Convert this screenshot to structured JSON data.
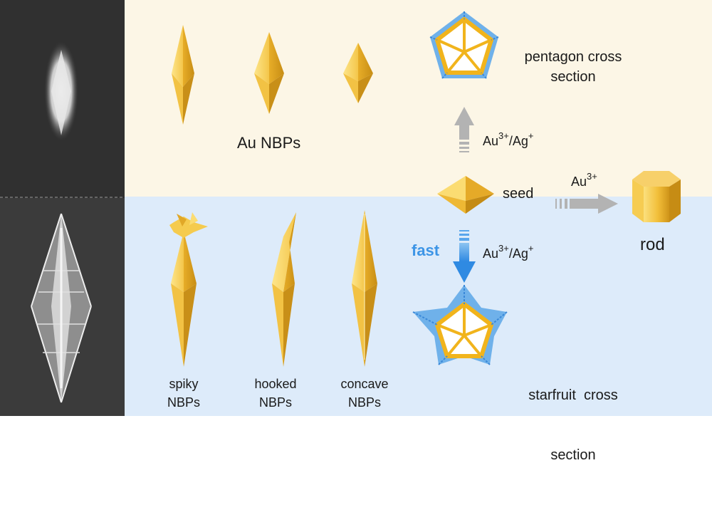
{
  "colors": {
    "top_band": "#fcf6e6",
    "bottom_band": "#ddebfa",
    "gold_light": "#fbdc72",
    "gold_mid": "#f2bf3a",
    "gold_dark": "#c98e14",
    "highlight_blue": "#3d95e6",
    "arrow_grey": "#b3b3b3",
    "cross_section_blue": "#6fb1ea",
    "sem_dark": "#2f2f2f"
  },
  "labels": {
    "au_nbps": "Au NBPs",
    "pentagon_cross_section": [
      "pentagon cross",
      "section"
    ],
    "seed": "seed",
    "rod": "rod",
    "fast": "fast",
    "reagent_up": {
      "base1": "Au",
      "sup1": "3+",
      "mid": "/Ag",
      "sup2": "+"
    },
    "reagent_down": {
      "base1": "Au",
      "sup1": "3+",
      "mid": "/Ag",
      "sup2": "+"
    },
    "reagent_right": {
      "base": "Au",
      "sup": "3+"
    },
    "starfruit_cross_section": [
      "starfruit  cross",
      "section"
    ],
    "spiky": [
      "spiky",
      "NBPs"
    ],
    "hooked": [
      "hooked",
      "NBPs"
    ],
    "concave": [
      "concave",
      "NBPs"
    ]
  },
  "icons": [
    "sem-image-nbp",
    "sem-image-concave-nbp",
    "gold-bipyramid",
    "pentagon-cross-section",
    "seed-decahedron",
    "gold-rod",
    "spiky-nbp",
    "hooked-nbp",
    "concave-nbp",
    "starfruit-cross-section"
  ]
}
